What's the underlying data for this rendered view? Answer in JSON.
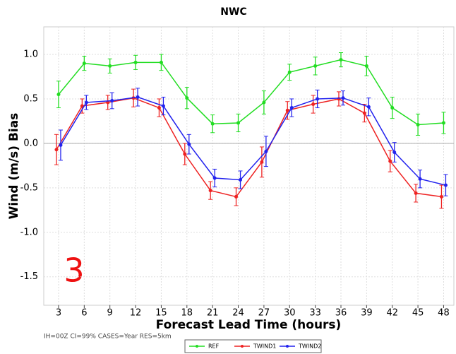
{
  "chart_data": {
    "type": "line",
    "title": "NWC",
    "x_label": "Forecast Lead Time (hours)",
    "y_label": "Wind (m/s) Bias",
    "annotation": "3",
    "footnote": "IH=00Z CI=99% CASES=Year RES=5km",
    "x": [
      3,
      6,
      9,
      12,
      15,
      18,
      21,
      24,
      27,
      30,
      33,
      36,
      39,
      42,
      45,
      48
    ],
    "series": [
      {
        "name": "REF",
        "color": "#22dd22",
        "values": [
          0.55,
          0.9,
          0.87,
          0.91,
          0.91,
          0.51,
          0.22,
          0.23,
          0.46,
          0.8,
          0.87,
          0.94,
          0.87,
          0.4,
          0.21,
          0.23
        ],
        "errors": [
          0.15,
          0.08,
          0.08,
          0.08,
          0.09,
          0.12,
          0.1,
          0.1,
          0.13,
          0.09,
          0.1,
          0.08,
          0.11,
          0.12,
          0.12,
          0.12
        ]
      },
      {
        "name": "TWIND1",
        "color": "#ee2222",
        "values": [
          -0.07,
          0.42,
          0.46,
          0.51,
          0.4,
          -0.12,
          -0.53,
          -0.6,
          -0.21,
          0.37,
          0.44,
          0.5,
          0.34,
          -0.2,
          -0.56,
          -0.6
        ],
        "errors": [
          0.17,
          0.08,
          0.08,
          0.1,
          0.1,
          0.12,
          0.1,
          0.1,
          0.17,
          0.1,
          0.1,
          0.08,
          0.1,
          0.12,
          0.1,
          0.13
        ]
      },
      {
        "name": "TWIND2",
        "color": "#2222ee",
        "values": [
          -0.02,
          0.46,
          0.48,
          0.52,
          0.42,
          -0.01,
          -0.39,
          -0.41,
          -0.09,
          0.4,
          0.5,
          0.51,
          0.41,
          -0.1,
          -0.4,
          -0.47
        ],
        "errors": [
          0.17,
          0.08,
          0.09,
          0.1,
          0.1,
          0.11,
          0.1,
          0.1,
          0.17,
          0.1,
          0.1,
          0.08,
          0.1,
          0.11,
          0.1,
          0.12
        ]
      }
    ],
    "xlim": [
      1.27,
      49.2
    ],
    "xticks": [
      3,
      6,
      9,
      12,
      15,
      18,
      21,
      24,
      27,
      30,
      33,
      36,
      39,
      42,
      45,
      48
    ],
    "ylim": [
      -1.82,
      1.31
    ],
    "yticks": [
      {
        "value": 1,
        "label": "1.0"
      },
      {
        "value": 0.5,
        "label": "0.5"
      },
      {
        "value": 0,
        "label": "0.0"
      },
      {
        "value": -0.5,
        "label": "-0.5"
      },
      {
        "value": -1,
        "label": "-1.0"
      },
      {
        "value": -1.5,
        "label": "-1.5"
      }
    ],
    "grid": true,
    "zero_line": true,
    "legend": "bottom"
  }
}
